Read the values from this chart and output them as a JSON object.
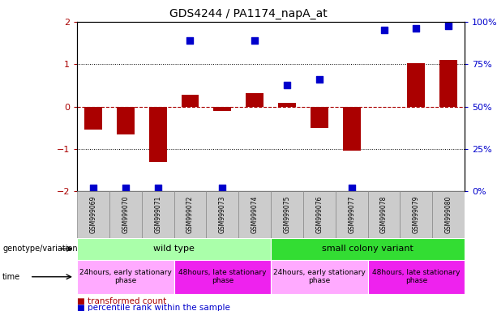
{
  "title": "GDS4244 / PA1174_napA_at",
  "samples": [
    "GSM999069",
    "GSM999070",
    "GSM999071",
    "GSM999072",
    "GSM999073",
    "GSM999074",
    "GSM999075",
    "GSM999076",
    "GSM999077",
    "GSM999078",
    "GSM999079",
    "GSM999080"
  ],
  "bar_values": [
    -0.55,
    -0.65,
    -1.3,
    0.28,
    -0.1,
    0.32,
    0.08,
    -0.5,
    -1.05,
    0.0,
    1.02,
    1.1
  ],
  "scatter_left_vals": [
    -1.92,
    -1.92,
    -1.92,
    1.55,
    -1.92,
    1.55,
    0.5,
    0.65,
    -1.92,
    1.8,
    1.85,
    1.9
  ],
  "red_color": "#aa0000",
  "blue_color": "#0000cc",
  "left_ylim": [
    -2,
    2
  ],
  "left_yticks": [
    -2,
    -1,
    0,
    1,
    2
  ],
  "right_yticks": [
    0,
    25,
    50,
    75,
    100
  ],
  "right_yticklabels": [
    "0%",
    "25%",
    "50%",
    "75%",
    "100%"
  ],
  "genotype_groups": [
    {
      "label": "wild type",
      "start": 0,
      "end": 5,
      "color": "#aaffaa"
    },
    {
      "label": "small colony variant",
      "start": 6,
      "end": 11,
      "color": "#33dd33"
    }
  ],
  "time_groups": [
    {
      "label": "24hours, early stationary\nphase",
      "start": 0,
      "end": 2,
      "color": "#ffaaff"
    },
    {
      "label": "48hours, late stationary\nphase",
      "start": 3,
      "end": 5,
      "color": "#ee22ee"
    },
    {
      "label": "24hours, early stationary\nphase",
      "start": 6,
      "end": 8,
      "color": "#ffaaff"
    },
    {
      "label": "48hours, late stationary\nphase",
      "start": 9,
      "end": 11,
      "color": "#ee22ee"
    }
  ],
  "bg_color": "#ffffff",
  "plot_bg": "#ffffff",
  "grid_color": "#000000",
  "bar_width": 0.55
}
